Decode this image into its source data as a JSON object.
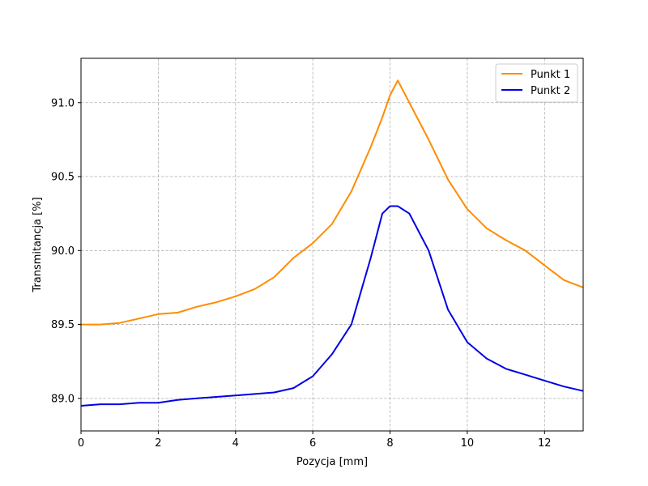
{
  "chart_data": {
    "type": "line",
    "title": "",
    "xlabel": "Pozycja [mm]",
    "ylabel": "Transmitancja [%]",
    "xlim": [
      0,
      13
    ],
    "ylim": [
      88.78,
      91.3
    ],
    "x_ticks": [
      0,
      2,
      4,
      6,
      8,
      10,
      12
    ],
    "x_tick_labels": [
      "0",
      "2",
      "4",
      "6",
      "8",
      "10",
      "12"
    ],
    "y_ticks": [
      89.0,
      89.5,
      90.0,
      90.5,
      91.0
    ],
    "y_tick_labels": [
      "89.0",
      "89.5",
      "90.0",
      "90.5",
      "91.0"
    ],
    "grid": true,
    "legend_position": "top-right",
    "series": [
      {
        "name": "Punkt 1",
        "color": "#ff8c00",
        "x": [
          0,
          0.5,
          1,
          1.5,
          2,
          2.5,
          3,
          3.5,
          4,
          4.5,
          5,
          5.5,
          6,
          6.5,
          7,
          7.5,
          7.8,
          8,
          8.2,
          8.5,
          9,
          9.5,
          10,
          10.5,
          11,
          11.5,
          12,
          12.5,
          13
        ],
        "values": [
          89.5,
          89.5,
          89.51,
          89.54,
          89.57,
          89.58,
          89.62,
          89.65,
          89.69,
          89.74,
          89.82,
          89.95,
          90.05,
          90.18,
          90.4,
          90.7,
          90.9,
          91.05,
          91.15,
          91.0,
          90.75,
          90.48,
          90.28,
          90.15,
          90.07,
          90.0,
          89.9,
          89.8,
          89.75
        ]
      },
      {
        "name": "Punkt 2",
        "color": "#0000e6",
        "x": [
          0,
          0.5,
          1,
          1.5,
          2,
          2.5,
          3,
          3.5,
          4,
          4.5,
          5,
          5.5,
          6,
          6.5,
          7,
          7.5,
          7.8,
          8,
          8.2,
          8.5,
          9,
          9.5,
          10,
          10.5,
          11,
          11.5,
          12,
          12.5,
          13
        ],
        "values": [
          88.95,
          88.96,
          88.96,
          88.97,
          88.97,
          88.99,
          89.0,
          89.01,
          89.02,
          89.03,
          89.04,
          89.07,
          89.15,
          89.3,
          89.5,
          89.95,
          90.25,
          90.3,
          90.3,
          90.25,
          90.0,
          89.6,
          89.38,
          89.27,
          89.2,
          89.16,
          89.12,
          89.08,
          89.05
        ]
      }
    ]
  }
}
